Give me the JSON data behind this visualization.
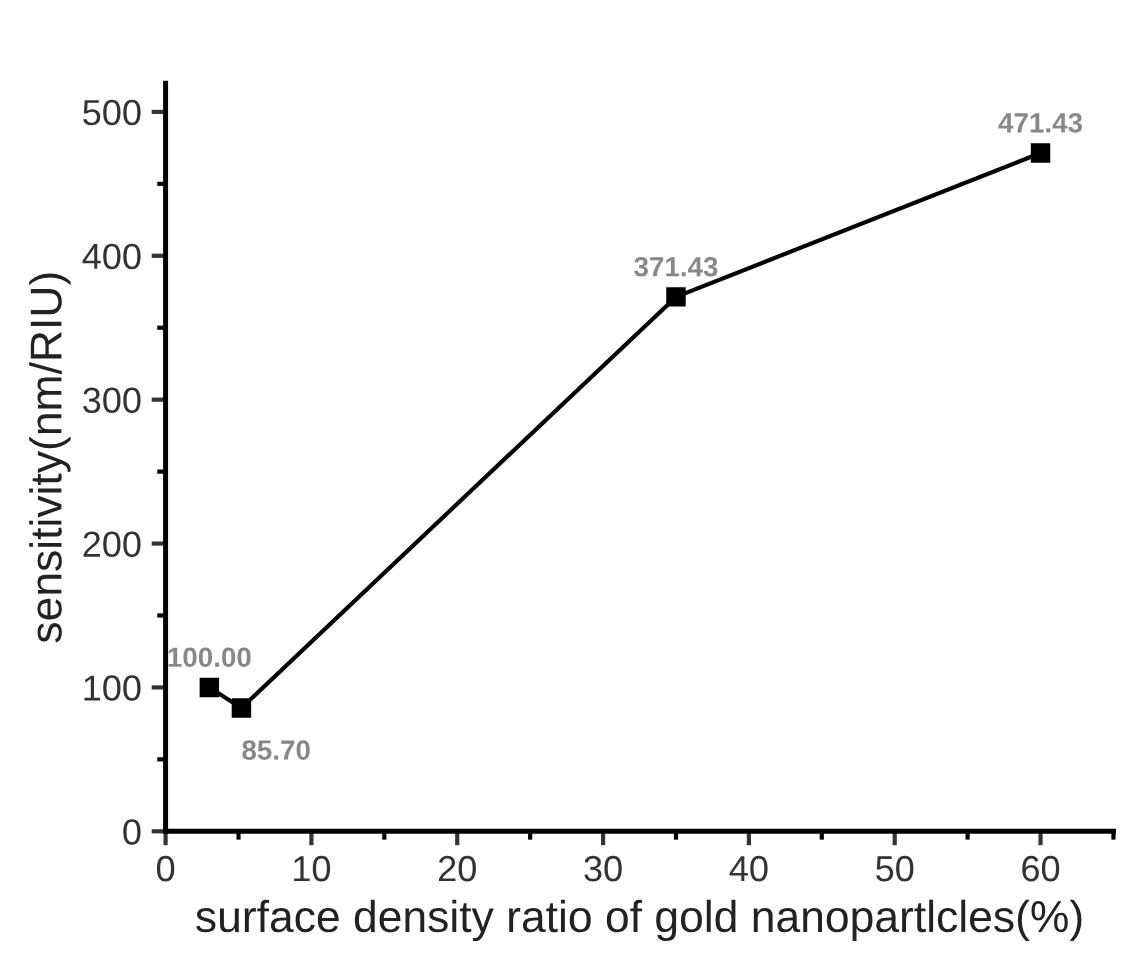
{
  "chart_data": {
    "type": "line",
    "xlabel": "surface density ratio of gold nanopartlcles(%)",
    "ylabel": "sensitivity(nm/RIU)",
    "x": [
      3,
      5.2,
      35,
      60
    ],
    "series": [
      {
        "color": "#000000",
        "values": [
          100,
          85.7,
          371.43,
          471.43
        ],
        "value_labels": [
          "100.00",
          "85.70",
          "371.43",
          "471.43"
        ]
      }
    ],
    "xlim": [
      0,
      65
    ],
    "xticks": [
      0,
      10,
      20,
      30,
      40,
      50,
      60
    ],
    "ylim": [
      0,
      520
    ],
    "yticks": [
      0,
      100,
      200,
      300,
      400,
      500
    ],
    "marker": "square",
    "line_style": "solid",
    "grid": false,
    "legend": false
  }
}
